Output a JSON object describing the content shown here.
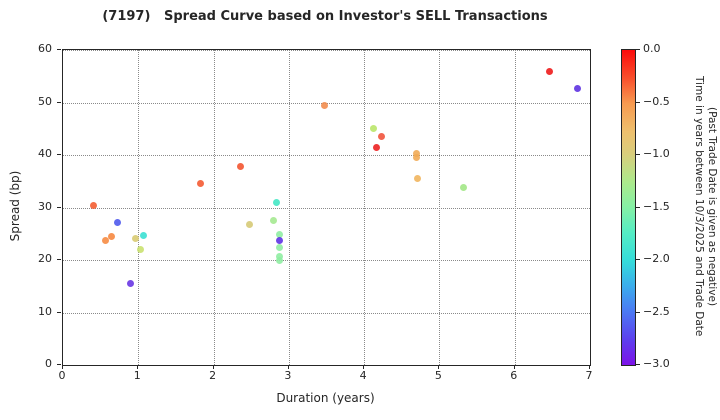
{
  "title": "(7197)   Spread Curve based on Investor's SELL Transactions",
  "chart_data": {
    "type": "scatter",
    "title": "(7197)   Spread Curve based on Investor's SELL Transactions",
    "xlabel": "Duration (years)",
    "ylabel": "Spread (bp)",
    "xlim": [
      0,
      7
    ],
    "ylim": [
      0,
      60
    ],
    "x_ticks": [
      0,
      1,
      2,
      3,
      4,
      5,
      6,
      7
    ],
    "y_ticks": [
      0,
      10,
      20,
      30,
      40,
      50,
      60
    ],
    "grid": true,
    "points": [
      {
        "duration": 0.41,
        "spread": 30.3,
        "time_years": -0.35,
        "color": "#f25a2e"
      },
      {
        "duration": 0.56,
        "spread": 23.7,
        "time_years": -0.6,
        "color": "#f6893f"
      },
      {
        "duration": 0.64,
        "spread": 24.4,
        "time_years": -0.6,
        "color": "#f6853b"
      },
      {
        "duration": 0.72,
        "spread": 27.1,
        "time_years": -2.5,
        "color": "#4a55ec"
      },
      {
        "duration": 0.9,
        "spread": 15.6,
        "time_years": -2.75,
        "color": "#6531e3"
      },
      {
        "duration": 0.96,
        "spread": 24.1,
        "time_years": -1.05,
        "color": "#d8ca6e"
      },
      {
        "duration": 1.03,
        "spread": 22.0,
        "time_years": -1.25,
        "color": "#c8e06c"
      },
      {
        "duration": 1.07,
        "spread": 24.7,
        "time_years": -1.85,
        "color": "#35dfd2"
      },
      {
        "duration": 1.83,
        "spread": 34.5,
        "time_years": -0.3,
        "color": "#f4562e"
      },
      {
        "duration": 2.36,
        "spread": 37.8,
        "time_years": -0.3,
        "color": "#f3512b"
      },
      {
        "duration": 2.48,
        "spread": 26.8,
        "time_years": -1.05,
        "color": "#d5c873"
      },
      {
        "duration": 2.79,
        "spread": 27.5,
        "time_years": -1.5,
        "color": "#a3e88e"
      },
      {
        "duration": 2.84,
        "spread": 30.9,
        "time_years": -1.8,
        "color": "#3fe6c3"
      },
      {
        "duration": 2.88,
        "spread": 24.9,
        "time_years": -1.5,
        "color": "#8deda1"
      },
      {
        "duration": 2.88,
        "spread": 23.8,
        "time_years": -2.8,
        "color": "#5a2de4"
      },
      {
        "duration": 2.88,
        "spread": 22.3,
        "time_years": -1.5,
        "color": "#8deda1"
      },
      {
        "duration": 2.87,
        "spread": 20.7,
        "time_years": -1.5,
        "color": "#8deda1"
      },
      {
        "duration": 2.87,
        "spread": 19.9,
        "time_years": -1.5,
        "color": "#8deda1"
      },
      {
        "duration": 3.48,
        "spread": 49.5,
        "time_years": -0.55,
        "color": "#f18a4a"
      },
      {
        "duration": 4.12,
        "spread": 45.0,
        "time_years": -1.3,
        "color": "#b8e566"
      },
      {
        "duration": 4.23,
        "spread": 43.5,
        "time_years": -0.35,
        "color": "#f05038"
      },
      {
        "duration": 4.16,
        "spread": 41.4,
        "time_years": -0.1,
        "color": "#ec1d1d"
      },
      {
        "duration": 4.69,
        "spread": 40.2,
        "time_years": -0.75,
        "color": "#f0a852"
      },
      {
        "duration": 4.69,
        "spread": 39.5,
        "time_years": -0.75,
        "color": "#f0a852"
      },
      {
        "duration": 4.71,
        "spread": 35.6,
        "time_years": -0.8,
        "color": "#f0b35a"
      },
      {
        "duration": 5.32,
        "spread": 33.9,
        "time_years": -1.45,
        "color": "#9fe683"
      },
      {
        "duration": 6.46,
        "spread": 55.9,
        "time_years": -0.05,
        "color": "#ee1414"
      },
      {
        "duration": 6.84,
        "spread": 52.7,
        "time_years": -2.85,
        "color": "#5a2ee0"
      }
    ],
    "colorbar": {
      "range": [
        0,
        -3
      ],
      "tick_values": [
        0,
        -0.5,
        -1,
        -1.5,
        -2,
        -2.5,
        -3
      ],
      "tick_labels": [
        "0.0",
        "−0.5",
        "−1.0",
        "−1.5",
        "−2.0",
        "−2.5",
        "−3.0"
      ],
      "label_line1": "Time in years between 10/3/2025 and Trade Date",
      "label_line2": "(Past Trade Date is given as negative)",
      "top_color": "#fb0b0b",
      "bottom_color": "#7c12e8"
    }
  }
}
